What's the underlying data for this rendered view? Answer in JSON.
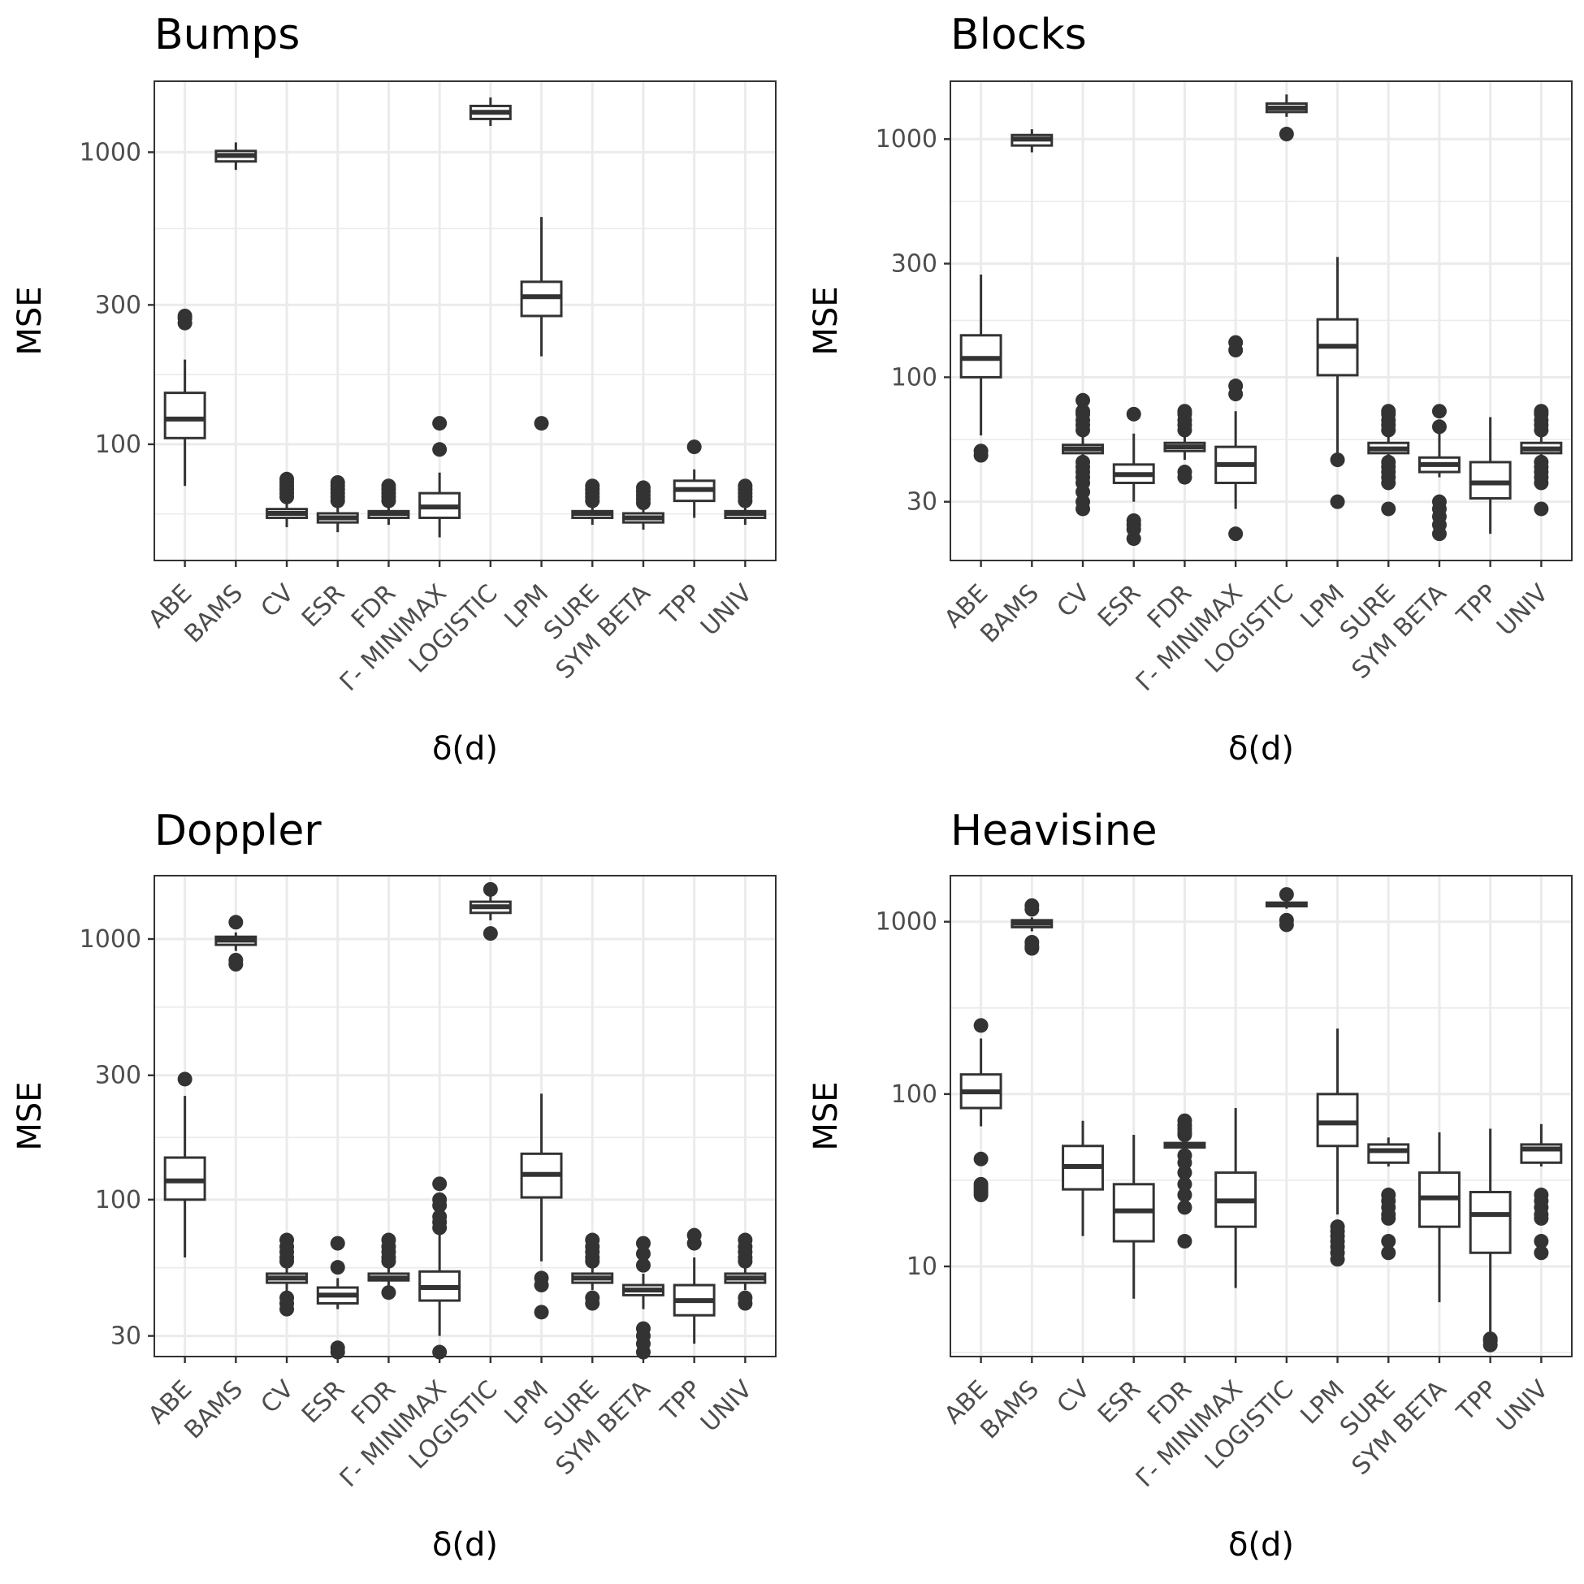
{
  "chart_data": [
    {
      "type": "box",
      "title": "Bumps",
      "xlabel": "δ(d)",
      "ylabel": "MSE",
      "yscale": "log10",
      "ylim": [
        40,
        1750
      ],
      "yticks": [
        100,
        300,
        1000
      ],
      "ytick_labels": [
        "100",
        "300",
        "1000"
      ],
      "categories": [
        "ABE",
        "BAMS",
        "CV",
        "ESR",
        "FDR",
        "Γ- MINIMAX",
        "LOGISTIC",
        "LPM",
        "SURE",
        "SYM  BETA",
        "TPP",
        "UNIV"
      ],
      "boxes": [
        {
          "min": 72,
          "q1": 105,
          "median": 122,
          "q3": 150,
          "max": 195,
          "outliers": [
            260,
            270,
            275
          ]
        },
        {
          "min": 870,
          "q1": 930,
          "median": 975,
          "q3": 1010,
          "max": 1080,
          "outliers": []
        },
        {
          "min": 52,
          "q1": 56,
          "median": 58,
          "q3": 60,
          "max": 64,
          "outliers": [
            66,
            68,
            70,
            72,
            74,
            76
          ]
        },
        {
          "min": 50,
          "q1": 54,
          "median": 56,
          "q3": 58,
          "max": 62,
          "outliers": [
            64,
            66,
            68,
            70,
            72,
            74
          ]
        },
        {
          "min": 53,
          "q1": 56,
          "median": 58,
          "q3": 59,
          "max": 62,
          "outliers": [
            64,
            66,
            68,
            70,
            72
          ]
        },
        {
          "min": 48,
          "q1": 56,
          "median": 61,
          "q3": 68,
          "max": 80,
          "outliers": [
            96,
            118
          ]
        },
        {
          "min": 1230,
          "q1": 1300,
          "median": 1370,
          "q3": 1440,
          "max": 1540,
          "outliers": []
        },
        {
          "min": 200,
          "q1": 275,
          "median": 320,
          "q3": 360,
          "max": 600,
          "outliers": [
            118
          ]
        },
        {
          "min": 53,
          "q1": 56,
          "median": 58,
          "q3": 59,
          "max": 62,
          "outliers": [
            64,
            66,
            68,
            70,
            72
          ]
        },
        {
          "min": 51,
          "q1": 54,
          "median": 56,
          "q3": 58,
          "max": 61,
          "outliers": [
            63,
            65,
            67,
            69,
            71
          ]
        },
        {
          "min": 56,
          "q1": 64,
          "median": 70,
          "q3": 75,
          "max": 82,
          "outliers": [
            98
          ]
        },
        {
          "min": 53,
          "q1": 56,
          "median": 58,
          "q3": 59,
          "max": 62,
          "outliers": [
            64,
            66,
            68,
            70,
            72
          ]
        }
      ]
    },
    {
      "type": "box",
      "title": "Blocks",
      "xlabel": "δ(d)",
      "ylabel": "MSE",
      "yscale": "log10",
      "ylim": [
        17,
        1750
      ],
      "yticks": [
        30,
        100,
        300,
        1000
      ],
      "ytick_labels": [
        "30",
        "100",
        "300",
        "1000"
      ],
      "categories": [
        "ABE",
        "BAMS",
        "CV",
        "ESR",
        "FDR",
        "Γ- MINIMAX",
        "LOGISTIC",
        "LPM",
        "SURE",
        "SYM  BETA",
        "TPP",
        "UNIV"
      ],
      "boxes": [
        {
          "min": 57,
          "q1": 100,
          "median": 120,
          "q3": 150,
          "max": 270,
          "outliers": [
            47,
            49
          ]
        },
        {
          "min": 880,
          "q1": 940,
          "median": 1000,
          "q3": 1040,
          "max": 1100,
          "outliers": []
        },
        {
          "min": 38,
          "q1": 48,
          "median": 50,
          "q3": 52,
          "max": 58,
          "outliers": [
            28,
            30,
            33,
            36,
            38,
            40,
            42,
            44,
            60,
            63,
            66,
            70,
            72,
            80
          ]
        },
        {
          "min": 30,
          "q1": 36,
          "median": 39,
          "q3": 43,
          "max": 58,
          "outliers": [
            21,
            23,
            24,
            25,
            70
          ]
        },
        {
          "min": 45,
          "q1": 49,
          "median": 51,
          "q3": 53,
          "max": 58,
          "outliers": [
            38,
            40,
            60,
            63,
            66,
            70,
            72
          ]
        },
        {
          "min": 28,
          "q1": 36,
          "median": 43,
          "q3": 51,
          "max": 72,
          "outliers": [
            22,
            85,
            92,
            130,
            140
          ]
        },
        {
          "min": 1240,
          "q1": 1300,
          "median": 1350,
          "q3": 1410,
          "max": 1540,
          "outliers": [
            1050
          ]
        },
        {
          "min": 48,
          "q1": 102,
          "median": 135,
          "q3": 175,
          "max": 320,
          "outliers": [
            30,
            45
          ]
        },
        {
          "min": 40,
          "q1": 48,
          "median": 50,
          "q3": 53,
          "max": 58,
          "outliers": [
            28,
            36,
            38,
            40,
            42,
            44,
            60,
            63,
            66,
            70,
            72
          ]
        },
        {
          "min": 38,
          "q1": 40,
          "median": 43,
          "q3": 46,
          "max": 58,
          "outliers": [
            22,
            24,
            26,
            28,
            30,
            62,
            72
          ]
        },
        {
          "min": 22,
          "q1": 31,
          "median": 36,
          "q3": 44,
          "max": 68,
          "outliers": []
        },
        {
          "min": 38,
          "q1": 48,
          "median": 50,
          "q3": 53,
          "max": 58,
          "outliers": [
            28,
            36,
            38,
            40,
            42,
            44,
            60,
            63,
            66,
            70,
            72
          ]
        }
      ]
    },
    {
      "type": "box",
      "title": "Doppler",
      "xlabel": "δ(d)",
      "ylabel": "MSE",
      "yscale": "log10",
      "ylim": [
        25,
        1750
      ],
      "yticks": [
        30,
        100,
        300,
        1000
      ],
      "ytick_labels": [
        "30",
        "100",
        "300",
        "1000"
      ],
      "categories": [
        "ABE",
        "BAMS",
        "CV",
        "ESR",
        "FDR",
        "Γ- MINIMAX",
        "LOGISTIC",
        "LPM",
        "SURE",
        "SYM  BETA",
        "TPP",
        "UNIV"
      ],
      "boxes": [
        {
          "min": 60,
          "q1": 100,
          "median": 118,
          "q3": 145,
          "max": 250,
          "outliers": [
            290
          ]
        },
        {
          "min": 900,
          "q1": 950,
          "median": 990,
          "q3": 1020,
          "max": 1060,
          "outliers": [
            800,
            830,
            1160
          ]
        },
        {
          "min": 44,
          "q1": 48,
          "median": 50,
          "q3": 52,
          "max": 56,
          "outliers": [
            38,
            40,
            42,
            58,
            60,
            63,
            66,
            70
          ]
        },
        {
          "min": 38,
          "q1": 40,
          "median": 43,
          "q3": 46,
          "max": 50,
          "outliers": [
            26,
            27,
            55,
            68
          ]
        },
        {
          "min": 46,
          "q1": 49,
          "median": 50,
          "q3": 52,
          "max": 55,
          "outliers": [
            44,
            58,
            60,
            63,
            66,
            70
          ]
        },
        {
          "min": 30,
          "q1": 41,
          "median": 46,
          "q3": 53,
          "max": 75,
          "outliers": [
            26,
            78,
            82,
            86,
            95,
            100,
            115
          ]
        },
        {
          "min": 1180,
          "q1": 1260,
          "median": 1330,
          "q3": 1390,
          "max": 1480,
          "outliers": [
            1050,
            1550
          ]
        },
        {
          "min": 58,
          "q1": 102,
          "median": 125,
          "q3": 150,
          "max": 255,
          "outliers": [
            37,
            47,
            50
          ]
        },
        {
          "min": 45,
          "q1": 48,
          "median": 50,
          "q3": 52,
          "max": 55,
          "outliers": [
            40,
            42,
            58,
            60,
            63,
            66,
            70
          ]
        },
        {
          "min": 38,
          "q1": 43,
          "median": 45,
          "q3": 47,
          "max": 52,
          "outliers": [
            26,
            28,
            30,
            32,
            56,
            62,
            68
          ]
        },
        {
          "min": 28,
          "q1": 36,
          "median": 41,
          "q3": 47,
          "max": 60,
          "outliers": [
            68,
            73
          ]
        },
        {
          "min": 45,
          "q1": 48,
          "median": 50,
          "q3": 52,
          "max": 55,
          "outliers": [
            40,
            42,
            58,
            60,
            63,
            66,
            70
          ]
        }
      ]
    },
    {
      "type": "box",
      "title": "Heavisine",
      "xlabel": "δ(d)",
      "ylabel": "MSE",
      "yscale": "log10",
      "ylim": [
        3,
        1850
      ],
      "yticks": [
        10,
        100,
        1000
      ],
      "ytick_labels": [
        "10",
        "100",
        "1000"
      ],
      "categories": [
        "ABE",
        "BAMS",
        "CV",
        "ESR",
        "FDR",
        "Γ- MINIMAX",
        "LOGISTIC",
        "LPM",
        "SURE",
        "SYM  BETA",
        "TPP",
        "UNIV"
      ],
      "boxes": [
        {
          "min": 65,
          "q1": 83,
          "median": 103,
          "q3": 130,
          "max": 210,
          "outliers": [
            26,
            27,
            28,
            29,
            30,
            42,
            250
          ]
        },
        {
          "min": 880,
          "q1": 930,
          "median": 980,
          "q3": 1020,
          "max": 1060,
          "outliers": [
            700,
            720,
            760,
            1180,
            1240
          ]
        },
        {
          "min": 15,
          "q1": 28,
          "median": 38,
          "q3": 50,
          "max": 70,
          "outliers": []
        },
        {
          "min": 6.5,
          "q1": 14,
          "median": 21,
          "q3": 30,
          "max": 58,
          "outliers": []
        },
        {
          "min": 48,
          "q1": 49,
          "median": 51,
          "q3": 52,
          "max": 55,
          "outliers": [
            14,
            22,
            26,
            30,
            35,
            40,
            44,
            58,
            60,
            63,
            66,
            70
          ]
        },
        {
          "min": 7.5,
          "q1": 17,
          "median": 24,
          "q3": 35,
          "max": 83,
          "outliers": []
        },
        {
          "min": 1190,
          "q1": 1230,
          "median": 1260,
          "q3": 1290,
          "max": 1330,
          "outliers": [
            960,
            1020,
            1440
          ]
        },
        {
          "min": 20,
          "q1": 50,
          "median": 68,
          "q3": 100,
          "max": 240,
          "outliers": [
            11,
            12,
            13,
            14,
            15,
            16,
            17
          ]
        },
        {
          "min": 38,
          "q1": 40,
          "median": 47,
          "q3": 51,
          "max": 56,
          "outliers": [
            12,
            14,
            19,
            20,
            22,
            24,
            26
          ]
        },
        {
          "min": 6.2,
          "q1": 17,
          "median": 25,
          "q3": 35,
          "max": 60,
          "outliers": []
        },
        {
          "min": 4,
          "q1": 12,
          "median": 20,
          "q3": 27,
          "max": 63,
          "outliers": [
            3.5,
            3.7,
            3.8
          ]
        },
        {
          "min": 38,
          "q1": 40,
          "median": 48,
          "q3": 51,
          "max": 67,
          "outliers": [
            12,
            14,
            19,
            20,
            22,
            24,
            26
          ]
        }
      ]
    }
  ]
}
